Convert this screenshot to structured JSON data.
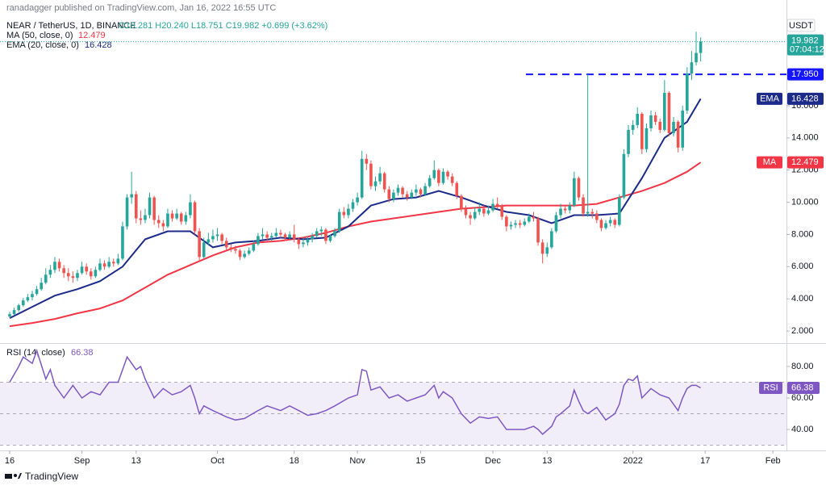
{
  "chart_data": {
    "type": "candlestick",
    "published": "ranadagger published on TradingView.com, Jan 16, 2022 16:55 UTC",
    "title": "NEAR / TetherUS, 1D, BINANCE",
    "ohlc_text": "O19.281 H20.240 L18.751 C19.982 +0.699 (+3.62%)",
    "currency": "USDT",
    "brand": "TradingView",
    "up_color": "#26a69a",
    "down_color": "#ef5350",
    "grid": false,
    "xlim": [
      -2.14,
      172
    ],
    "xticks": [
      {
        "value": 0,
        "label": "16"
      },
      {
        "value": 16,
        "label": "Sep"
      },
      {
        "value": 28,
        "label": "13"
      },
      {
        "value": 46,
        "label": "Oct"
      },
      {
        "value": 63,
        "label": "18"
      },
      {
        "value": 77,
        "label": "Nov"
      },
      {
        "value": 91,
        "label": "15"
      },
      {
        "value": 107,
        "label": "Dec"
      },
      {
        "value": 119,
        "label": "13"
      },
      {
        "value": 138,
        "label": "2022"
      },
      {
        "value": 154,
        "label": "17"
      },
      {
        "value": 169,
        "label": "Feb"
      }
    ],
    "ylim": [
      1.25,
      22.57
    ],
    "yticks": [
      {
        "value": 2,
        "label": "2.000"
      },
      {
        "value": 4,
        "label": "4.000"
      },
      {
        "value": 6,
        "label": "6.000"
      },
      {
        "value": 8,
        "label": "8.000"
      },
      {
        "value": 10,
        "label": "10.000"
      },
      {
        "value": 12,
        "label": "12.000"
      },
      {
        "value": 14,
        "label": "14.000"
      },
      {
        "value": 16,
        "label": "16.000"
      }
    ],
    "x": [
      0,
      1,
      2,
      3,
      4,
      5,
      6,
      7,
      8,
      9,
      10,
      11,
      12,
      13,
      14,
      15,
      16,
      17,
      18,
      19,
      20,
      21,
      22,
      23,
      24,
      25,
      26,
      27,
      28,
      29,
      30,
      31,
      32,
      33,
      34,
      35,
      36,
      37,
      38,
      39,
      40,
      41,
      42,
      43,
      44,
      45,
      46,
      47,
      48,
      49,
      50,
      51,
      52,
      53,
      54,
      55,
      56,
      57,
      58,
      59,
      60,
      61,
      62,
      63,
      64,
      65,
      66,
      67,
      68,
      69,
      70,
      71,
      72,
      73,
      74,
      75,
      76,
      77,
      78,
      79,
      80,
      81,
      82,
      83,
      84,
      85,
      86,
      87,
      88,
      89,
      90,
      91,
      92,
      93,
      94,
      95,
      96,
      97,
      98,
      99,
      100,
      101,
      102,
      103,
      104,
      105,
      106,
      107,
      108,
      109,
      110,
      111,
      112,
      113,
      114,
      115,
      116,
      117,
      118,
      119,
      120,
      121,
      122,
      123,
      124,
      125,
      126,
      127,
      128,
      129,
      130,
      131,
      132,
      133,
      134,
      135,
      136,
      137,
      138,
      139,
      140,
      141,
      142,
      143,
      144,
      145,
      146,
      147,
      148,
      149,
      150,
      151,
      152,
      153
    ],
    "candles": [
      [
        2.9,
        3.2,
        2.8,
        3.05
      ],
      [
        3.05,
        3.45,
        3.0,
        3.3
      ],
      [
        3.3,
        3.7,
        3.2,
        3.6
      ],
      [
        3.6,
        4.05,
        3.5,
        3.9
      ],
      [
        3.9,
        4.3,
        3.8,
        4.1
      ],
      [
        4.1,
        4.5,
        3.9,
        4.3
      ],
      [
        4.3,
        4.8,
        4.2,
        4.6
      ],
      [
        4.6,
        5.3,
        4.5,
        5.0
      ],
      [
        5.0,
        5.9,
        4.9,
        5.5
      ],
      [
        5.5,
        6.1,
        5.3,
        5.8
      ],
      [
        5.8,
        6.6,
        5.6,
        6.3
      ],
      [
        6.3,
        6.5,
        5.7,
        5.9
      ],
      [
        5.9,
        6.1,
        5.3,
        5.6
      ],
      [
        5.6,
        5.9,
        5.1,
        5.4
      ],
      [
        5.4,
        5.7,
        5.0,
        5.3
      ],
      [
        5.3,
        5.8,
        5.1,
        5.6
      ],
      [
        5.6,
        6.3,
        5.5,
        6.0
      ],
      [
        6.0,
        6.2,
        5.5,
        5.7
      ],
      [
        5.7,
        5.9,
        5.2,
        5.4
      ],
      [
        5.4,
        6.0,
        5.3,
        5.8
      ],
      [
        5.8,
        6.5,
        5.7,
        6.2
      ],
      [
        6.2,
        6.4,
        5.8,
        6.0
      ],
      [
        6.0,
        6.6,
        5.9,
        6.3
      ],
      [
        6.3,
        6.5,
        6.0,
        6.2
      ],
      [
        6.2,
        6.8,
        6.1,
        6.5
      ],
      [
        6.5,
        8.8,
        6.4,
        8.5
      ],
      [
        8.5,
        10.5,
        8.3,
        10.3
      ],
      [
        10.3,
        11.9,
        9.9,
        10.5
      ],
      [
        10.5,
        10.7,
        8.7,
        9.0
      ],
      [
        9.0,
        9.5,
        8.6,
        8.9
      ],
      [
        8.9,
        9.6,
        8.7,
        9.2
      ],
      [
        9.2,
        10.6,
        9.0,
        10.3
      ],
      [
        10.3,
        10.4,
        8.6,
        8.9
      ],
      [
        8.9,
        9.2,
        8.4,
        8.7
      ],
      [
        8.7,
        8.9,
        8.2,
        8.5
      ],
      [
        8.5,
        9.6,
        8.4,
        9.3
      ],
      [
        9.3,
        9.5,
        8.8,
        9.0
      ],
      [
        9.0,
        9.6,
        8.9,
        9.3
      ],
      [
        9.3,
        9.4,
        8.6,
        8.8
      ],
      [
        8.8,
        9.4,
        8.6,
        9.2
      ],
      [
        9.2,
        10.5,
        9.0,
        10.0
      ],
      [
        10.0,
        10.1,
        8.0,
        8.2
      ],
      [
        8.2,
        8.4,
        6.3,
        6.6
      ],
      [
        6.6,
        7.8,
        6.5,
        7.5
      ],
      [
        7.5,
        8.1,
        7.3,
        7.7
      ],
      [
        7.7,
        8.3,
        7.5,
        7.9
      ],
      [
        7.9,
        8.4,
        7.6,
        8.0
      ],
      [
        8.0,
        8.1,
        7.4,
        7.6
      ],
      [
        7.6,
        7.8,
        7.0,
        7.2
      ],
      [
        7.2,
        7.4,
        6.9,
        7.1
      ],
      [
        7.1,
        7.3,
        6.8,
        7.0
      ],
      [
        7.0,
        7.1,
        6.4,
        6.6
      ],
      [
        6.6,
        7.0,
        6.5,
        6.8
      ],
      [
        6.8,
        7.2,
        6.7,
        7.0
      ],
      [
        7.0,
        7.6,
        6.9,
        7.4
      ],
      [
        7.4,
        8.1,
        7.3,
        7.9
      ],
      [
        7.9,
        8.4,
        7.7,
        8.0
      ],
      [
        8.0,
        8.2,
        7.6,
        7.8
      ],
      [
        7.8,
        8.1,
        7.6,
        7.9
      ],
      [
        7.9,
        8.4,
        7.8,
        8.1
      ],
      [
        8.1,
        8.3,
        7.8,
        8.0
      ],
      [
        8.0,
        8.1,
        7.6,
        7.8
      ],
      [
        7.8,
        8.2,
        7.7,
        8.0
      ],
      [
        8.0,
        8.6,
        7.5,
        7.7
      ],
      [
        7.7,
        7.8,
        7.1,
        7.4
      ],
      [
        7.4,
        7.8,
        7.2,
        7.5
      ],
      [
        7.5,
        7.9,
        7.3,
        7.7
      ],
      [
        7.7,
        8.1,
        7.5,
        7.9
      ],
      [
        7.9,
        8.4,
        7.8,
        8.2
      ],
      [
        8.2,
        8.5,
        7.9,
        8.3
      ],
      [
        8.3,
        8.4,
        7.4,
        7.6
      ],
      [
        7.6,
        8.0,
        7.5,
        7.9
      ],
      [
        7.9,
        8.4,
        7.8,
        8.2
      ],
      [
        8.2,
        9.6,
        8.1,
        9.4
      ],
      [
        9.4,
        9.7,
        9.0,
        9.2
      ],
      [
        9.2,
        9.9,
        9.0,
        9.6
      ],
      [
        9.6,
        10.2,
        9.4,
        10.0
      ],
      [
        10.0,
        10.6,
        9.8,
        10.3
      ],
      [
        10.3,
        13.2,
        10.2,
        12.7
      ],
      [
        12.7,
        13.0,
        12.0,
        12.4
      ],
      [
        12.4,
        12.6,
        10.8,
        11.0
      ],
      [
        11.0,
        11.6,
        10.7,
        11.3
      ],
      [
        11.3,
        12.2,
        11.1,
        11.8
      ],
      [
        11.8,
        11.9,
        10.6,
        10.8
      ],
      [
        10.8,
        11.0,
        10.0,
        10.2
      ],
      [
        10.2,
        10.8,
        10.0,
        10.6
      ],
      [
        10.6,
        11.1,
        10.4,
        10.9
      ],
      [
        10.9,
        11.0,
        10.3,
        10.5
      ],
      [
        10.5,
        10.7,
        10.1,
        10.3
      ],
      [
        10.3,
        10.8,
        10.2,
        10.6
      ],
      [
        10.6,
        11.1,
        10.4,
        10.8
      ],
      [
        10.8,
        10.9,
        10.3,
        10.5
      ],
      [
        10.5,
        11.2,
        10.4,
        11.0
      ],
      [
        11.0,
        11.7,
        10.9,
        11.5
      ],
      [
        11.5,
        12.6,
        11.4,
        12.0
      ],
      [
        12.0,
        12.1,
        11.0,
        11.2
      ],
      [
        11.2,
        12.1,
        11.1,
        11.9
      ],
      [
        11.9,
        12.0,
        11.4,
        11.6
      ],
      [
        11.6,
        11.8,
        11.0,
        11.2
      ],
      [
        11.2,
        11.3,
        10.2,
        10.4
      ],
      [
        10.4,
        10.5,
        9.4,
        9.6
      ],
      [
        9.6,
        9.8,
        9.0,
        9.2
      ],
      [
        9.2,
        9.4,
        8.6,
        9.0
      ],
      [
        9.0,
        9.7,
        8.9,
        9.4
      ],
      [
        9.4,
        10.0,
        9.2,
        9.6
      ],
      [
        9.6,
        9.8,
        9.1,
        9.3
      ],
      [
        9.3,
        9.8,
        9.2,
        9.5
      ],
      [
        9.5,
        10.2,
        9.4,
        9.9
      ],
      [
        9.9,
        10.3,
        9.6,
        9.8
      ],
      [
        9.8,
        9.9,
        8.9,
        9.1
      ],
      [
        9.1,
        9.2,
        8.2,
        8.5
      ],
      [
        8.5,
        8.8,
        8.3,
        8.6
      ],
      [
        8.6,
        8.9,
        8.4,
        8.7
      ],
      [
        8.7,
        8.9,
        8.4,
        8.6
      ],
      [
        8.6,
        9.0,
        8.5,
        8.8
      ],
      [
        8.8,
        9.3,
        8.7,
        9.1
      ],
      [
        9.1,
        9.4,
        8.8,
        9.0
      ],
      [
        9.0,
        9.1,
        7.3,
        7.5
      ],
      [
        7.5,
        7.7,
        6.2,
        6.8
      ],
      [
        6.8,
        7.5,
        6.6,
        7.2
      ],
      [
        7.2,
        8.4,
        7.1,
        8.2
      ],
      [
        8.2,
        9.4,
        8.1,
        9.2
      ],
      [
        9.2,
        9.9,
        9.0,
        9.6
      ],
      [
        9.6,
        9.8,
        9.3,
        9.5
      ],
      [
        9.5,
        10.0,
        9.3,
        9.8
      ],
      [
        9.8,
        11.9,
        9.7,
        11.5
      ],
      [
        11.5,
        11.6,
        10.1,
        10.3
      ],
      [
        10.3,
        10.5,
        9.1,
        9.3
      ],
      [
        9.3,
        17.95,
        9.1,
        9.4
      ],
      [
        9.4,
        9.6,
        9.0,
        9.3
      ],
      [
        9.3,
        9.5,
        8.7,
        8.9
      ],
      [
        8.9,
        9.0,
        8.2,
        8.4
      ],
      [
        8.4,
        8.9,
        8.3,
        8.7
      ],
      [
        8.7,
        9.1,
        8.5,
        8.9
      ],
      [
        8.9,
        9.0,
        8.4,
        8.6
      ],
      [
        8.6,
        10.5,
        8.5,
        10.3
      ],
      [
        10.3,
        13.3,
        10.2,
        13.0
      ],
      [
        13.0,
        14.8,
        12.8,
        14.5
      ],
      [
        14.5,
        15.1,
        14.2,
        14.8
      ],
      [
        14.8,
        15.9,
        14.6,
        15.5
      ],
      [
        15.5,
        15.6,
        13.0,
        13.3
      ],
      [
        13.3,
        14.9,
        13.1,
        14.6
      ],
      [
        14.6,
        15.7,
        14.4,
        15.4
      ],
      [
        15.4,
        15.6,
        14.8,
        15.0
      ],
      [
        15.0,
        15.2,
        14.3,
        14.5
      ],
      [
        14.5,
        17.6,
        14.4,
        16.8
      ],
      [
        16.8,
        16.9,
        14.1,
        14.3
      ],
      [
        14.3,
        15.3,
        14.1,
        15.0
      ],
      [
        15.0,
        15.1,
        13.1,
        13.4
      ],
      [
        13.4,
        16.0,
        13.2,
        15.7
      ],
      [
        15.7,
        18.4,
        15.5,
        18.0
      ],
      [
        18.0,
        19.4,
        17.6,
        18.7
      ],
      [
        18.7,
        20.6,
        18.5,
        19.28
      ],
      [
        19.281,
        20.24,
        18.751,
        19.982
      ]
    ],
    "series": [
      {
        "name": "MA (50, close, 0)",
        "value_label": "12.479",
        "badge": "MA",
        "color": "#f23645",
        "x": [
          0,
          5,
          10,
          15,
          20,
          25,
          30,
          35,
          40,
          45,
          50,
          55,
          60,
          65,
          70,
          75,
          80,
          85,
          90,
          95,
          100,
          105,
          110,
          115,
          120,
          125,
          130,
          135,
          140,
          145,
          150,
          153
        ],
        "values": [
          2.3,
          2.5,
          2.75,
          3.1,
          3.4,
          3.9,
          4.7,
          5.5,
          6.1,
          6.7,
          7.2,
          7.5,
          7.6,
          7.8,
          8.1,
          8.5,
          8.8,
          9.0,
          9.2,
          9.4,
          9.6,
          9.7,
          9.8,
          9.8,
          9.8,
          9.8,
          9.9,
          10.3,
          10.7,
          11.2,
          11.9,
          12.479
        ]
      },
      {
        "name": "EMA (20, close, 0)",
        "value_label": "16.428",
        "badge": "EMA",
        "color": "#1c2a8a",
        "x": [
          0,
          5,
          10,
          15,
          20,
          25,
          30,
          35,
          40,
          45,
          50,
          55,
          60,
          65,
          70,
          75,
          80,
          85,
          90,
          95,
          100,
          105,
          110,
          115,
          120,
          125,
          130,
          135,
          140,
          145,
          150,
          153
        ],
        "values": [
          2.8,
          3.5,
          4.2,
          4.6,
          5.1,
          6.0,
          7.7,
          8.2,
          8.2,
          7.2,
          7.5,
          7.6,
          7.8,
          7.7,
          7.8,
          8.5,
          9.8,
          10.2,
          10.3,
          10.7,
          10.3,
          9.8,
          9.4,
          9.2,
          8.7,
          9.2,
          9.2,
          9.3,
          11.5,
          14.0,
          15.0,
          16.428
        ]
      }
    ],
    "hline": {
      "value": 17.95,
      "label": "17.950",
      "x_start": 114.3,
      "color": "#1515ff"
    },
    "last_price": {
      "value": 19.982,
      "label": "19.982",
      "countdown": "07:04:12"
    },
    "rsi": {
      "name": "RSI (14, close)",
      "value_label": "66.38",
      "badge": "RSI",
      "color": "#7e57c2",
      "ylim": [
        26.7,
        93.3
      ],
      "yticks": [
        {
          "value": 40,
          "label": "40.00"
        },
        {
          "value": 60,
          "label": "60.00"
        },
        {
          "value": 80,
          "label": "80.00"
        }
      ],
      "levels": [
        30,
        50,
        70
      ],
      "x": [
        0,
        2,
        3,
        5,
        6,
        8,
        9,
        10,
        12,
        14,
        16,
        18,
        20,
        22,
        24,
        25,
        26,
        28,
        29,
        30,
        32,
        34,
        36,
        38,
        40,
        41,
        42,
        43,
        45,
        48,
        50,
        52,
        55,
        57,
        60,
        62,
        64,
        66,
        68,
        70,
        72,
        75,
        77,
        78,
        79,
        80,
        82,
        84,
        86,
        88,
        90,
        92,
        94,
        95,
        96,
        98,
        100,
        102,
        104,
        106,
        108,
        110,
        112,
        114,
        116,
        117,
        118,
        120,
        121,
        122,
        124,
        125,
        126,
        127,
        128,
        130,
        132,
        134,
        135,
        136,
        137,
        138,
        139,
        140,
        142,
        144,
        146,
        148,
        149,
        150,
        151,
        152,
        153
      ],
      "values": [
        70,
        80,
        86,
        82,
        90,
        72,
        78,
        68,
        60,
        68,
        60,
        64,
        62,
        70,
        70,
        78,
        86,
        78,
        80,
        72,
        60,
        66,
        62,
        64,
        68,
        60,
        50,
        55,
        52,
        48,
        46,
        47,
        52,
        55,
        52,
        55,
        52,
        49,
        50,
        52,
        55,
        60,
        62,
        78,
        77,
        65,
        67,
        60,
        62,
        58,
        60,
        62,
        68,
        60,
        64,
        60,
        50,
        44,
        48,
        47,
        48,
        40,
        40,
        40,
        42,
        40,
        37,
        42,
        48,
        50,
        55,
        65,
        58,
        52,
        50,
        54,
        46,
        50,
        56,
        68,
        72,
        71,
        74,
        60,
        66,
        62,
        60,
        52,
        60,
        66,
        68,
        68,
        66.38
      ]
    }
  }
}
